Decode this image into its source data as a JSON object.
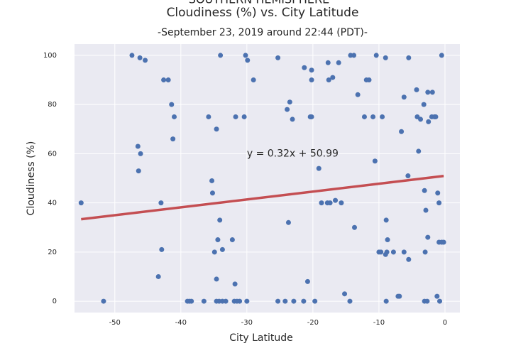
{
  "chart_data": {
    "type": "scatter",
    "title": [
      "SOUTHERN HEMISPHERE",
      "Cloudiness (%) vs. City Latitude"
    ],
    "subtitle": "-September 23, 2019 around 22:44 (PDT)-",
    "xlabel": "City Latitude",
    "ylabel": "Cloudiness (%)",
    "xlim": [
      -56.1,
      2.26
    ],
    "ylim": [
      -4.6,
      104.6
    ],
    "xticks": [
      -50,
      -40,
      -30,
      -20,
      -10,
      0
    ],
    "yticks": [
      0,
      20,
      40,
      60,
      80,
      100
    ],
    "grid": true,
    "color": "#4c72b0",
    "x": [
      -55.1,
      -51.7,
      -47.4,
      -46.2,
      -45.4,
      -46.5,
      -46.1,
      -46.4,
      -43.0,
      -42.9,
      -43.4,
      -42.6,
      -41.9,
      -41.4,
      -41.0,
      -41.2,
      -39.0,
      -38.7,
      -38.4,
      -36.5,
      -35.8,
      -35.3,
      -35.2,
      -34.6,
      -34.9,
      -34.4,
      -34.6,
      -34.6,
      -34.2,
      -34.0,
      -34.1,
      -33.7,
      -33.7,
      -33.2,
      -32.2,
      -31.7,
      -31.8,
      -31.9,
      -31.5,
      -31.1,
      -30.4,
      -30.2,
      -29.9,
      -30.0,
      -29.0,
      -25.3,
      -25.3,
      -24.2,
      -23.9,
      -23.5,
      -23.1,
      -23.7,
      -22.9,
      -21.3,
      -21.4,
      -20.8,
      -20.2,
      -20.2,
      -20.4,
      -20.2,
      -19.7,
      -19.1,
      -18.7,
      -17.7,
      -17.6,
      -17.0,
      -17.8,
      -17.4,
      -16.6,
      -16.1,
      -15.7,
      -15.2,
      -14.4,
      -14.3,
      -13.8,
      -13.7,
      -13.2,
      -12.2,
      -11.9,
      -11.5,
      -10.9,
      -10.6,
      -10.4,
      -10.0,
      -9.7,
      -9.5,
      -9.0,
      -9.0,
      -8.8,
      -8.9,
      -8.7,
      -8.9,
      -7.8,
      -7.1,
      -6.9,
      -6.6,
      -6.2,
      -6.2,
      -5.6,
      -5.5,
      -5.5,
      -4.3,
      -4.2,
      -4.0,
      -3.7,
      -3.2,
      -3.1,
      -2.9,
      -3.0,
      -3.1,
      -2.7,
      -2.6,
      -1.9,
      -2.5,
      -2.6,
      -2.0,
      -1.6,
      -1.4,
      -1.1,
      -0.9,
      -1.2,
      -0.8,
      -0.9,
      -0.5,
      -0.2,
      -0.5
    ],
    "y": [
      40,
      0,
      100,
      99,
      98,
      63,
      60,
      53,
      40,
      21,
      10,
      90,
      90,
      80,
      75,
      66,
      0,
      0,
      0,
      0,
      75,
      49,
      44,
      70,
      20,
      25,
      9,
      0,
      0,
      100,
      33,
      21,
      0,
      0,
      25,
      75,
      7,
      0,
      0,
      0,
      75,
      100,
      98,
      0,
      90,
      99,
      0,
      0,
      78,
      81,
      74,
      32,
      0,
      95,
      0,
      8,
      94,
      90,
      75,
      75,
      0,
      54,
      40,
      97,
      90,
      91,
      40,
      40,
      41,
      97,
      40,
      3,
      0,
      100,
      100,
      30,
      84,
      75,
      90,
      90,
      75,
      57,
      100,
      20,
      20,
      75,
      99,
      19,
      20,
      33,
      25,
      0,
      20,
      2,
      2,
      69,
      83,
      20,
      51,
      99,
      17,
      86,
      75,
      61,
      74,
      80,
      45,
      37,
      20,
      0,
      0,
      85,
      85,
      73,
      26,
      75,
      75,
      75,
      44,
      40,
      2,
      0,
      24,
      24,
      24,
      100
    ],
    "regression": {
      "slope": 0.32,
      "intercept": 50.99,
      "color": "#c44e52",
      "label": "y = 0.32x + 50.99",
      "label_x": -30,
      "label_y": 60,
      "label_color": "#ff0000"
    }
  }
}
